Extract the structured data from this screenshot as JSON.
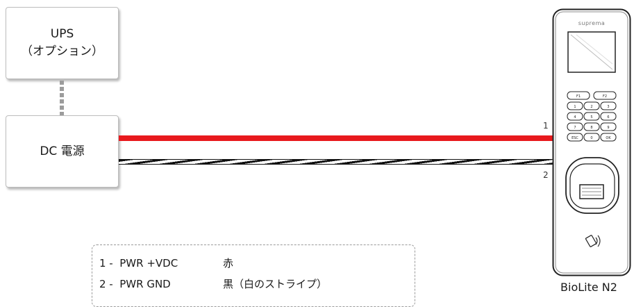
{
  "ups": {
    "line1": "UPS",
    "line2": "（オプション）"
  },
  "power_supply": {
    "label": "DC 電源"
  },
  "wires": {
    "pin1": "1",
    "pin2": "2"
  },
  "device": {
    "brand": "suprema",
    "name": "BioLite N2",
    "keys": [
      "F1",
      "F2",
      "1",
      "2",
      "3",
      "4",
      "5",
      "6",
      "7",
      "8",
      "9",
      "ESC",
      "0",
      "OK"
    ]
  },
  "legend": [
    {
      "pin": "1 -  PWR +VDC",
      "color": "赤"
    },
    {
      "pin": "2 -  PWR GND",
      "color": "黒（白のストライプ）"
    }
  ],
  "colors": {
    "wire_red": "#e8191d",
    "wire_black": "#111111"
  }
}
